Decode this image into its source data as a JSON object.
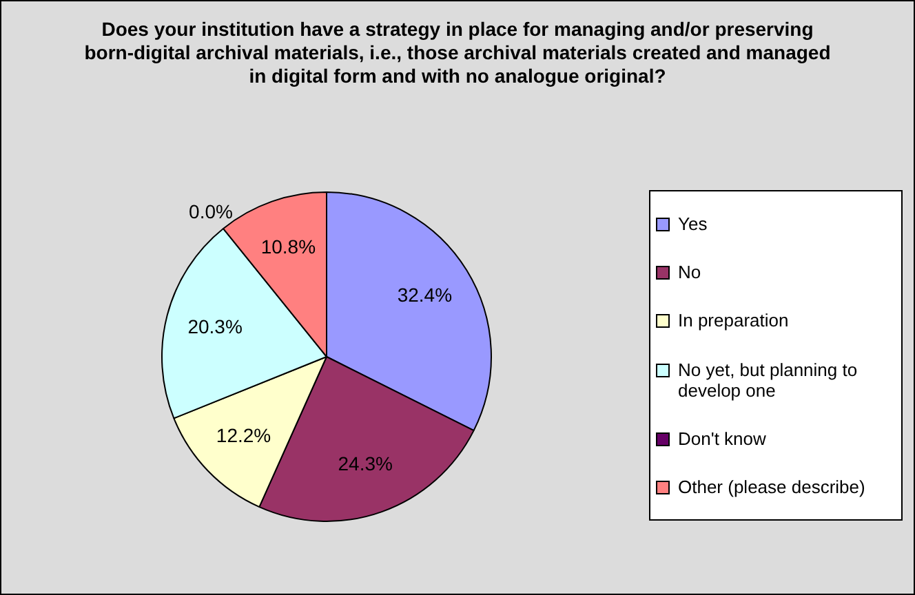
{
  "chart_data": {
    "type": "pie",
    "title": "Does your institution have a strategy in place for managing and/or preserving born-digital archival materials, i.e., those archival materials created and managed in digital form and with no analogue original?",
    "categories": [
      "Yes",
      "No",
      "In preparation",
      "No yet, but planning to develop one",
      "Don't know",
      "Other (please describe)"
    ],
    "values": [
      32.4,
      24.3,
      12.2,
      20.3,
      0.0,
      10.8
    ],
    "colors": [
      "#9999ff",
      "#993366",
      "#ffffcc",
      "#ccffff",
      "#660066",
      "#ff8080"
    ],
    "value_labels": [
      "32.4%",
      "24.3%",
      "12.2%",
      "20.3%",
      "0.0%",
      "10.8%"
    ],
    "legend": "right"
  }
}
